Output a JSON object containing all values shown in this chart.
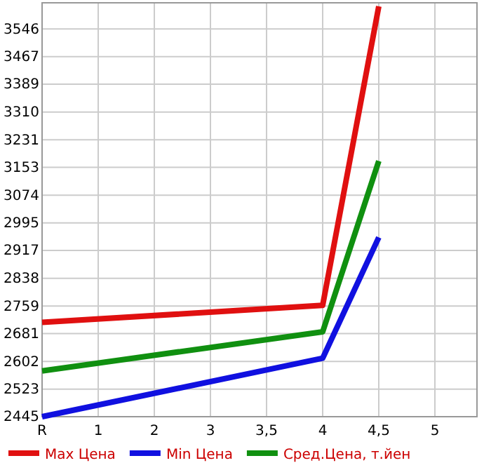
{
  "chart_data": {
    "type": "line",
    "categories": [
      "R",
      "1",
      "2",
      "3",
      "3,5",
      "4",
      "4,5",
      "5"
    ],
    "series": [
      {
        "name": "Max Цена",
        "color": "#e01010",
        "values": [
          2713,
          null,
          null,
          null,
          null,
          2761,
          3610,
          null
        ]
      },
      {
        "name": "Min Цена",
        "color": "#1010e0",
        "values": [
          2445,
          null,
          null,
          null,
          null,
          2611,
          2954,
          null
        ]
      },
      {
        "name": "Сред.Цена, т.йен",
        "color": "#109010",
        "values": [
          2575,
          null,
          null,
          null,
          null,
          2686,
          3171,
          null
        ]
      }
    ],
    "ylim": [
      2445,
      3620
    ],
    "yticks": [
      2445,
      2523,
      2602,
      2681,
      2759,
      2838,
      2917,
      2995,
      3074,
      3153,
      3231,
      3310,
      3389,
      3467,
      3546
    ],
    "grid": true,
    "legend": "bottom",
    "line_style": "solid",
    "marker": "none"
  }
}
